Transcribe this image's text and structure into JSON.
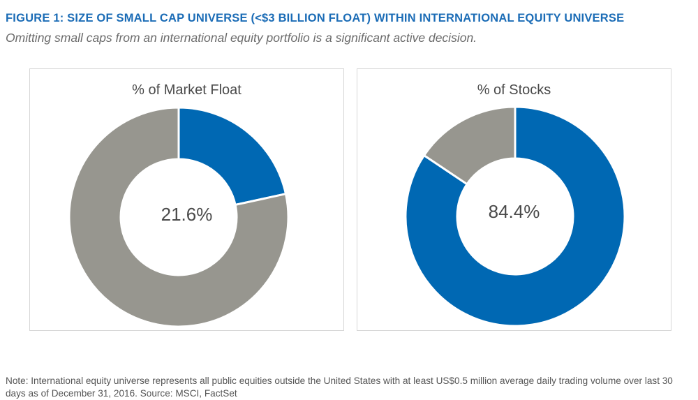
{
  "figure": {
    "title": "FIGURE 1: SIZE OF SMALL CAP UNIVERSE (<$3 BILLION FLOAT) WITHIN INTERNATIONAL EQUITY UNIVERSE",
    "subtitle": "Omitting small caps from an international equity portfolio is a significant active decision.",
    "note": "Note: International equity universe represents all public equities outside the United States with at least US$0.5 million average daily trading volume over last 30 days as of December 31, 2016. Source: MSCI, FactSet"
  },
  "colors": {
    "title": "#1b6cb6",
    "highlight": "#0068b3",
    "remainder": "#97968f",
    "divider": "#ffffff"
  },
  "chart_data": [
    {
      "type": "pie",
      "title": "% of Market Float",
      "center_label": "21.6%",
      "slices": [
        {
          "value": 21.6,
          "color_key": "highlight"
        },
        {
          "value": 78.4,
          "color_key": "remainder"
        }
      ]
    },
    {
      "type": "pie",
      "title": "% of Stocks",
      "center_label": "84.4%",
      "slices": [
        {
          "value": 84.4,
          "color_key": "highlight"
        },
        {
          "value": 15.6,
          "color_key": "remainder"
        }
      ]
    }
  ]
}
